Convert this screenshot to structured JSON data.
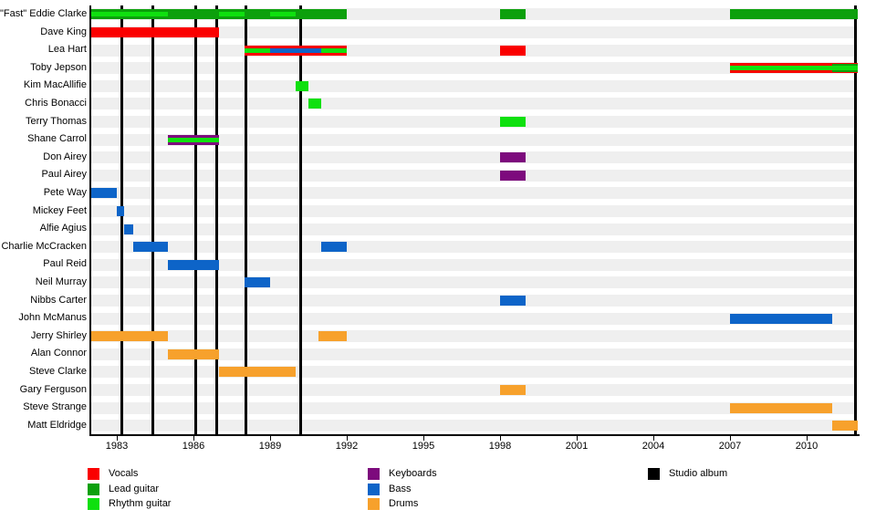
{
  "chart_data": {
    "type": "bar",
    "subtype": "horizontal-timeline-gantt (band membership history)",
    "title": "",
    "xlabel": "",
    "ylabel": "",
    "grid": "row-stripes",
    "legend_position": "bottom",
    "x_axis": {
      "range": [
        1982,
        2012
      ],
      "ticks": [
        1983,
        1986,
        1989,
        1992,
        1995,
        1998,
        2001,
        2004,
        2007,
        2010
      ]
    },
    "roles": {
      "vocals": {
        "label": "Vocals",
        "color": "#fa0000"
      },
      "lead_guitar": {
        "label": "Lead guitar",
        "color": "#0ca00c"
      },
      "rhythm_guitar": {
        "label": "Rhythm guitar",
        "color": "#0fe00f"
      },
      "keyboards": {
        "label": "Keyboards",
        "color": "#7d0a7d"
      },
      "bass": {
        "label": "Bass",
        "color": "#0d64c8"
      },
      "drums": {
        "label": "Drums",
        "color": "#f7a12c"
      },
      "studio_album": {
        "label": "Studio album",
        "color": "#000000"
      }
    },
    "legend_columns": [
      [
        "vocals",
        "lead_guitar",
        "rhythm_guitar"
      ],
      [
        "keyboards",
        "bass",
        "drums"
      ],
      [
        "studio_album"
      ]
    ],
    "studio_albums_years": [
      1983.2,
      1984.4,
      1986.1,
      1986.9,
      1988.05,
      1990.2,
      2011.9
    ],
    "members": [
      {
        "name": "\"Fast\" Eddie Clarke",
        "periods": [
          {
            "start": 1982,
            "end": 1985,
            "roles": [
              "lead_guitar",
              "rhythm_guitar"
            ]
          },
          {
            "start": 1985,
            "end": 1987,
            "roles": [
              "lead_guitar"
            ]
          },
          {
            "start": 1987,
            "end": 1988,
            "roles": [
              "lead_guitar",
              "rhythm_guitar"
            ]
          },
          {
            "start": 1988,
            "end": 1989,
            "roles": [
              "lead_guitar"
            ]
          },
          {
            "start": 1989,
            "end": 1990,
            "roles": [
              "lead_guitar",
              "rhythm_guitar"
            ]
          },
          {
            "start": 1990,
            "end": 1992,
            "roles": [
              "lead_guitar"
            ]
          },
          {
            "start": 1998,
            "end": 1999,
            "roles": [
              "lead_guitar"
            ]
          },
          {
            "start": 2007,
            "end": 2012,
            "roles": [
              "lead_guitar"
            ]
          }
        ]
      },
      {
        "name": "Dave King",
        "periods": [
          {
            "start": 1982,
            "end": 1987,
            "roles": [
              "vocals"
            ]
          }
        ]
      },
      {
        "name": "Lea Hart",
        "periods": [
          {
            "start": 1988,
            "end": 1989,
            "roles": [
              "vocals",
              "rhythm_guitar"
            ]
          },
          {
            "start": 1989,
            "end": 1991,
            "roles": [
              "vocals",
              "bass"
            ]
          },
          {
            "start": 1991,
            "end": 1992,
            "roles": [
              "vocals",
              "rhythm_guitar"
            ]
          },
          {
            "start": 1998,
            "end": 1999,
            "roles": [
              "vocals"
            ]
          }
        ]
      },
      {
        "name": "Toby Jepson",
        "periods": [
          {
            "start": 2007,
            "end": 2011,
            "roles": [
              "vocals",
              "rhythm_guitar"
            ]
          },
          {
            "start": 2011,
            "end": 2012,
            "roles": [
              "vocals",
              "lead_guitar",
              "rhythm_guitar"
            ]
          }
        ]
      },
      {
        "name": "Kim MacAllifie",
        "periods": [
          {
            "start": 1990,
            "end": 1990.5,
            "roles": [
              "rhythm_guitar"
            ]
          }
        ]
      },
      {
        "name": "Chris Bonacci",
        "periods": [
          {
            "start": 1990.5,
            "end": 1991,
            "roles": [
              "rhythm_guitar"
            ]
          }
        ]
      },
      {
        "name": "Terry Thomas",
        "periods": [
          {
            "start": 1998,
            "end": 1999,
            "roles": [
              "rhythm_guitar"
            ]
          }
        ]
      },
      {
        "name": "Shane Carrol",
        "periods": [
          {
            "start": 1985,
            "end": 1987,
            "roles": [
              "keyboards",
              "rhythm_guitar"
            ]
          }
        ]
      },
      {
        "name": "Don Airey",
        "periods": [
          {
            "start": 1998,
            "end": 1999,
            "roles": [
              "keyboards"
            ]
          }
        ]
      },
      {
        "name": "Paul Airey",
        "periods": [
          {
            "start": 1998,
            "end": 1999,
            "roles": [
              "keyboards"
            ]
          }
        ]
      },
      {
        "name": "Pete Way",
        "periods": [
          {
            "start": 1982,
            "end": 1983,
            "roles": [
              "bass"
            ]
          }
        ]
      },
      {
        "name": "Mickey Feet",
        "periods": [
          {
            "start": 1983,
            "end": 1983.3,
            "roles": [
              "bass"
            ]
          }
        ]
      },
      {
        "name": "Alfie Agius",
        "periods": [
          {
            "start": 1983.3,
            "end": 1983.65,
            "roles": [
              "bass"
            ]
          }
        ]
      },
      {
        "name": "Charlie McCracken",
        "periods": [
          {
            "start": 1983.65,
            "end": 1985,
            "roles": [
              "bass"
            ]
          },
          {
            "start": 1991,
            "end": 1992,
            "roles": [
              "bass"
            ]
          }
        ]
      },
      {
        "name": "Paul Reid",
        "periods": [
          {
            "start": 1985,
            "end": 1987,
            "roles": [
              "bass"
            ]
          }
        ]
      },
      {
        "name": "Neil Murray",
        "periods": [
          {
            "start": 1988,
            "end": 1989,
            "roles": [
              "bass"
            ]
          }
        ]
      },
      {
        "name": "Nibbs Carter",
        "periods": [
          {
            "start": 1998,
            "end": 1999,
            "roles": [
              "bass"
            ]
          }
        ]
      },
      {
        "name": "John McManus",
        "periods": [
          {
            "start": 2007,
            "end": 2011,
            "roles": [
              "bass"
            ]
          }
        ]
      },
      {
        "name": "Jerry Shirley",
        "periods": [
          {
            "start": 1982,
            "end": 1985,
            "roles": [
              "drums"
            ]
          },
          {
            "start": 1990.9,
            "end": 1992,
            "roles": [
              "drums"
            ]
          }
        ]
      },
      {
        "name": "Alan Connor",
        "periods": [
          {
            "start": 1985,
            "end": 1987,
            "roles": [
              "drums"
            ]
          }
        ]
      },
      {
        "name": "Steve Clarke",
        "periods": [
          {
            "start": 1987,
            "end": 1990,
            "roles": [
              "drums"
            ]
          }
        ]
      },
      {
        "name": "Gary Ferguson",
        "periods": [
          {
            "start": 1998,
            "end": 1999,
            "roles": [
              "drums"
            ]
          }
        ]
      },
      {
        "name": "Steve Strange",
        "periods": [
          {
            "start": 2007,
            "end": 2011,
            "roles": [
              "drums"
            ]
          }
        ]
      },
      {
        "name": "Matt Eldridge",
        "periods": [
          {
            "start": 2011,
            "end": 2012,
            "roles": [
              "drums"
            ]
          }
        ]
      }
    ]
  }
}
